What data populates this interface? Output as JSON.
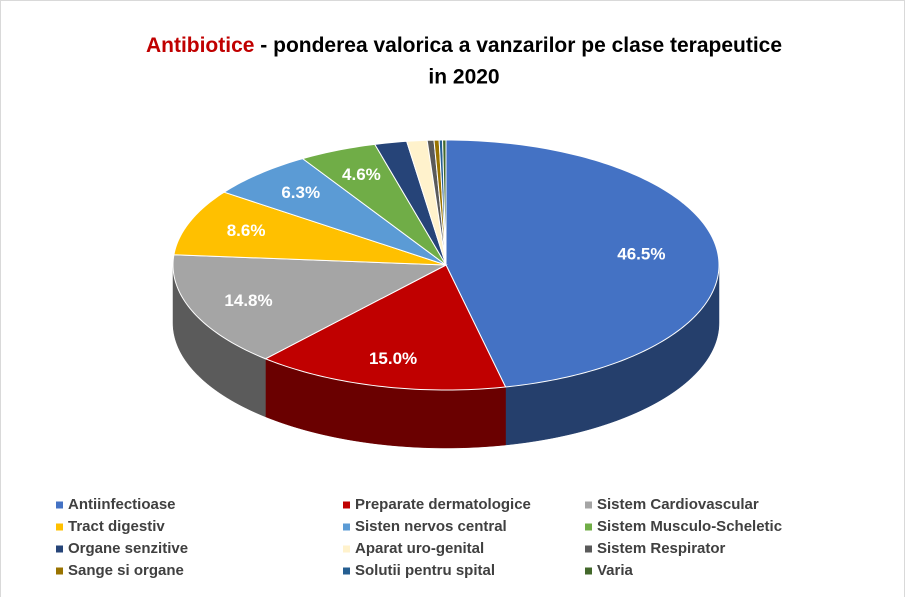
{
  "chart_data": {
    "type": "pie3d",
    "title": {
      "highlight": "Antibiotice",
      "rest": "- ponderea valorica a vanzarilor pe clase terapeutice",
      "line2": "in 2020"
    },
    "categories": [
      "Antiinfectioase",
      "Preparate dermatologice",
      "Sistem Cardiovascular",
      "Tract digestiv",
      "Sisten nervos central",
      "Sistem Musculo-Scheletic",
      "Organe senzitive",
      "Aparat uro-genital",
      "Sistem Respirator",
      "Sange si organe",
      "Solutii pentru spital",
      "Varia"
    ],
    "values": [
      46.5,
      15.0,
      14.8,
      8.6,
      6.3,
      4.6,
      1.9,
      1.2,
      0.4,
      0.3,
      0.2,
      0.2
    ],
    "value_labels": [
      "46.5%",
      "15.0%",
      "14.8%",
      "8.6%",
      "6.3%",
      "4.6%",
      null,
      null,
      null,
      null,
      null,
      null
    ],
    "colors": [
      "#4472c4",
      "#c00000",
      "#a5a5a5",
      "#ffc000",
      "#5b9bd5",
      "#70ad47",
      "#264478",
      "#fff2cc",
      "#5a5a5a",
      "#997300",
      "#255e91",
      "#43682b"
    ],
    "legend": "bottom"
  }
}
